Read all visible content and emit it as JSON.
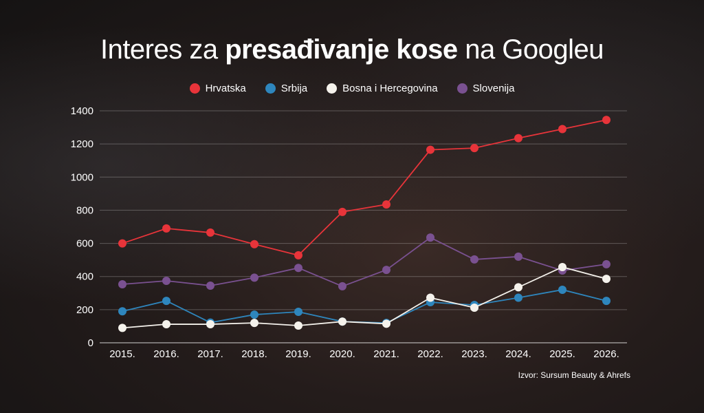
{
  "title": {
    "part1": "Interes za ",
    "bold": "presađivanje kose",
    "part2": " na Googleu"
  },
  "source": "Izvor: Sursum Beauty & Ahrefs",
  "chart_data": {
    "type": "line",
    "title": "Interes za presađivanje kose na Googleu",
    "xlabel": "",
    "ylabel": "",
    "ylim": [
      0,
      1400
    ],
    "yticks": [
      "0",
      "200",
      "400",
      "600",
      "800",
      "1000",
      "1200",
      "1400"
    ],
    "categories": [
      "2015.",
      "2016.",
      "2017.",
      "2018.",
      "2019.",
      "2020.",
      "2021.",
      "2022.",
      "2023.",
      "2024.",
      "2025.",
      "2026."
    ],
    "legend_position": "top-center",
    "grid": true,
    "series": [
      {
        "name": "Hrvatska",
        "color": "#e8343a",
        "values": [
          600,
          690,
          665,
          595,
          528,
          790,
          835,
          1165,
          1175,
          1235,
          1290,
          1345
        ]
      },
      {
        "name": "Srbija",
        "color": "#2e86bd",
        "values": [
          190,
          253,
          122,
          170,
          187,
          128,
          120,
          245,
          228,
          272,
          320,
          253
        ]
      },
      {
        "name": "Bosna i Hercegovina",
        "color": "#f5f2ec",
        "values": [
          90,
          112,
          112,
          120,
          104,
          128,
          115,
          272,
          212,
          335,
          457,
          386
        ]
      },
      {
        "name": "Slovenija",
        "color": "#7a5191",
        "values": [
          353,
          374,
          345,
          393,
          452,
          341,
          440,
          635,
          503,
          520,
          436,
          474
        ]
      }
    ]
  }
}
